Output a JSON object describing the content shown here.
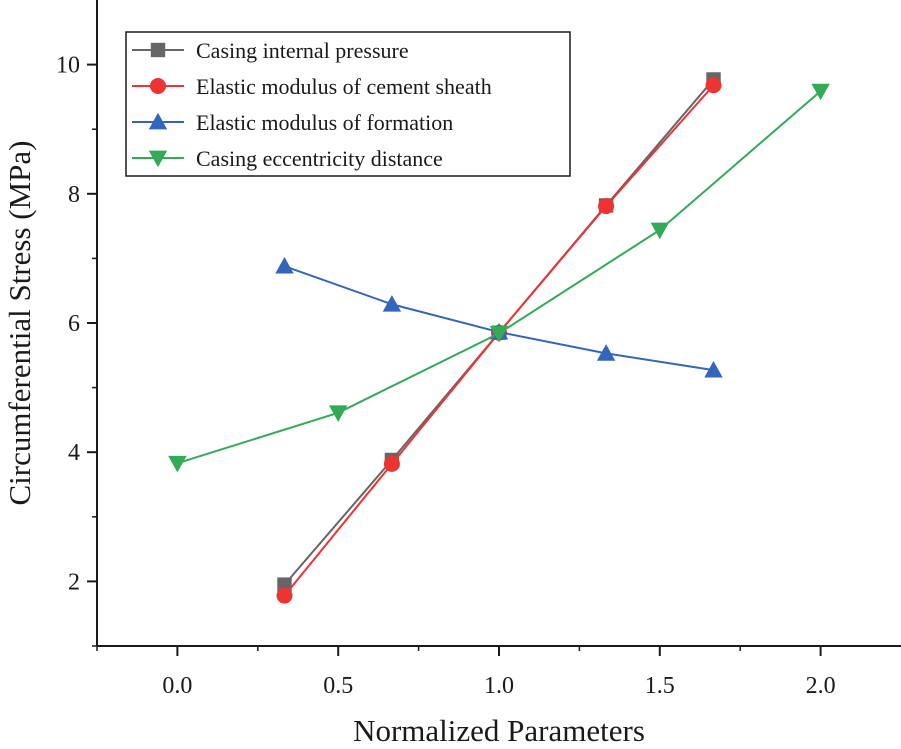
{
  "chart_data": {
    "type": "line",
    "title": "",
    "xlabel": "Normalized Parameters",
    "ylabel": "Circumferential Stress (MPa)",
    "xlim": [
      -0.25,
      2.25
    ],
    "ylim": [
      1.0,
      11.0
    ],
    "x_ticks": [
      0.0,
      0.5,
      1.0,
      1.5,
      2.0
    ],
    "x_tick_labels": [
      "0.0",
      "0.5",
      "1.0",
      "1.5",
      "2.0"
    ],
    "y_ticks": [
      2,
      4,
      6,
      8,
      10
    ],
    "y_tick_labels": [
      "2",
      "4",
      "6",
      "8",
      "10"
    ],
    "grid": false,
    "legend_position": "top-left",
    "series": [
      {
        "name": "Casing internal pressure",
        "color": "#666666",
        "marker": "square",
        "x": [
          0.333,
          0.667,
          1.0,
          1.333,
          1.667
        ],
        "y": [
          1.95,
          3.88,
          5.85,
          7.82,
          9.77
        ]
      },
      {
        "name": "Elastic modulus of cement sheath",
        "color": "#ee3333",
        "marker": "circle",
        "x": [
          0.333,
          0.667,
          1.0,
          1.333,
          1.667
        ],
        "y": [
          1.78,
          3.82,
          5.85,
          7.81,
          9.68
        ]
      },
      {
        "name": "Elastic modulus of formation",
        "color": "#3366bb",
        "marker": "triangle-up",
        "x": [
          0.333,
          0.667,
          1.0,
          1.333,
          1.667
        ],
        "y": [
          6.88,
          6.29,
          5.86,
          5.53,
          5.27
        ]
      },
      {
        "name": "Casing eccentricity distance",
        "color": "#33aa55",
        "marker": "triangle-down",
        "x": [
          0.0,
          0.5,
          1.0,
          1.5,
          2.0
        ],
        "y": [
          3.83,
          4.61,
          5.84,
          7.44,
          9.59
        ]
      }
    ]
  }
}
